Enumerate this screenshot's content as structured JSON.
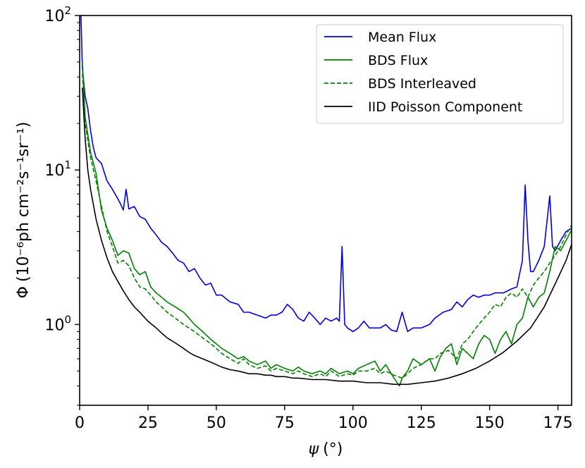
{
  "chart_data": {
    "type": "line",
    "xlabel_symbol": "ψ",
    "xlabel_unit": "(°)",
    "ylabel_symbol": "Φ",
    "ylabel_unit": "(10⁻⁶ph cm⁻²s⁻¹sr⁻¹)",
    "xlim": [
      0,
      180
    ],
    "ylim": [
      0.3,
      100
    ],
    "yscale": "log",
    "grid": false,
    "legend_position": "top-right",
    "x_ticks": [
      0,
      25,
      50,
      75,
      100,
      125,
      150,
      175
    ],
    "x_tick_labels": [
      "0",
      "25",
      "50",
      "75",
      "100",
      "125",
      "150",
      "175"
    ],
    "y_ticks": [
      1,
      10,
      100
    ],
    "y_tick_labels": [
      {
        "base": "10",
        "exp": "0"
      },
      {
        "base": "10",
        "exp": "1"
      },
      {
        "base": "10",
        "exp": "2"
      }
    ],
    "series": [
      {
        "name": "Mean Flux",
        "color": "#0000dd",
        "dash": "solid",
        "x": [
          0.5,
          1,
          2,
          3,
          4,
          5,
          6,
          8,
          10,
          12,
          14,
          15,
          16,
          17,
          18,
          20,
          22,
          24,
          26,
          28,
          30,
          32,
          34,
          36,
          38,
          40,
          42,
          44,
          46,
          48,
          50,
          52,
          55,
          58,
          60,
          62,
          65,
          68,
          70,
          72,
          74,
          76,
          78,
          80,
          82,
          84,
          86,
          88,
          90,
          92,
          94,
          95,
          96,
          97,
          98,
          100,
          102,
          104,
          106,
          108,
          110,
          112,
          114,
          116,
          118,
          120,
          122,
          125,
          128,
          130,
          133,
          136,
          138,
          140,
          142,
          144,
          146,
          148,
          150,
          152,
          155,
          158,
          160,
          162,
          163,
          164,
          165,
          166,
          168,
          170,
          172,
          173,
          174,
          176,
          178,
          180
        ],
        "y": [
          100,
          45,
          30,
          25,
          18,
          14,
          12,
          11,
          8.5,
          7.5,
          6.5,
          6.0,
          5.5,
          7.5,
          5.6,
          5.8,
          5.0,
          4.8,
          4.2,
          3.8,
          3.4,
          3.2,
          2.9,
          2.6,
          2.5,
          2.2,
          2.3,
          2.0,
          1.8,
          1.85,
          1.55,
          1.55,
          1.4,
          1.35,
          1.2,
          1.2,
          1.15,
          1.1,
          1.15,
          1.15,
          1.2,
          1.35,
          1.25,
          1.1,
          1.05,
          1.2,
          1.1,
          1.0,
          1.1,
          1.05,
          1.1,
          1.05,
          3.2,
          1.0,
          0.95,
          0.9,
          0.95,
          1.05,
          0.95,
          0.95,
          0.95,
          1.0,
          0.92,
          0.9,
          1.2,
          0.9,
          0.95,
          0.95,
          1.0,
          1.1,
          1.2,
          1.25,
          1.4,
          1.3,
          1.45,
          1.55,
          1.5,
          1.55,
          1.55,
          1.6,
          1.6,
          1.7,
          1.75,
          2.6,
          8.0,
          3.5,
          2.2,
          2.2,
          2.6,
          3.2,
          6.8,
          3.2,
          3.0,
          3.5,
          4.0,
          4.2
        ]
      },
      {
        "name": "BDS Flux",
        "color": "#008000",
        "dash": "solid",
        "x": [
          1,
          2,
          4,
          6,
          8,
          10,
          12,
          14,
          16,
          18,
          20,
          22,
          24,
          26,
          28,
          30,
          32,
          35,
          38,
          40,
          42,
          45,
          48,
          50,
          52,
          55,
          58,
          60,
          62,
          65,
          68,
          70,
          72,
          75,
          78,
          80,
          82,
          85,
          88,
          90,
          92,
          95,
          98,
          100,
          102,
          105,
          108,
          110,
          112,
          115,
          117,
          118,
          120,
          122,
          125,
          128,
          130,
          132,
          134,
          136,
          138,
          140,
          142,
          144,
          146,
          148,
          150,
          152,
          154,
          156,
          158,
          160,
          162,
          164,
          166,
          168,
          170,
          172,
          174,
          176,
          178,
          180
        ],
        "y": [
          50,
          22,
          13,
          9.5,
          5.5,
          4.2,
          3.5,
          2.8,
          3.0,
          2.9,
          2.3,
          2.1,
          2.2,
          1.75,
          1.6,
          1.5,
          1.4,
          1.3,
          1.2,
          1.1,
          1.0,
          0.9,
          0.8,
          0.75,
          0.7,
          0.65,
          0.6,
          0.62,
          0.58,
          0.55,
          0.58,
          0.52,
          0.55,
          0.52,
          0.5,
          0.53,
          0.5,
          0.48,
          0.5,
          0.48,
          0.52,
          0.48,
          0.5,
          0.48,
          0.52,
          0.55,
          0.58,
          0.5,
          0.55,
          0.45,
          0.4,
          0.45,
          0.5,
          0.6,
          0.55,
          0.6,
          0.5,
          0.62,
          0.7,
          0.75,
          0.55,
          0.7,
          0.65,
          0.6,
          0.75,
          0.85,
          0.8,
          0.65,
          0.8,
          0.9,
          0.75,
          1.0,
          1.1,
          1.5,
          1.3,
          1.5,
          1.6,
          2.2,
          3.2,
          3.0,
          3.5,
          4.1
        ]
      },
      {
        "name": "BDS Interleaved",
        "color": "#008000",
        "dash": "dashed",
        "x": [
          1,
          2,
          4,
          6,
          8,
          10,
          12,
          14,
          16,
          18,
          20,
          22,
          24,
          26,
          28,
          30,
          32,
          35,
          38,
          40,
          42,
          45,
          48,
          50,
          52,
          55,
          58,
          60,
          62,
          65,
          68,
          70,
          72,
          75,
          78,
          80,
          82,
          85,
          88,
          90,
          92,
          95,
          98,
          100,
          102,
          105,
          108,
          110,
          112,
          115,
          118,
          120,
          122,
          125,
          128,
          130,
          132,
          135,
          138,
          140,
          142,
          144,
          146,
          148,
          150,
          152,
          154,
          156,
          158,
          160,
          162,
          164,
          166,
          168,
          170,
          172,
          174,
          176,
          178,
          180
        ],
        "y": [
          42,
          20,
          12,
          8.5,
          5.8,
          4.0,
          3.2,
          2.5,
          2.6,
          2.4,
          2.0,
          1.75,
          1.7,
          1.55,
          1.4,
          1.3,
          1.2,
          1.1,
          1.0,
          0.95,
          0.9,
          0.82,
          0.75,
          0.7,
          0.65,
          0.6,
          0.56,
          0.6,
          0.55,
          0.52,
          0.54,
          0.5,
          0.52,
          0.5,
          0.48,
          0.5,
          0.48,
          0.46,
          0.48,
          0.46,
          0.5,
          0.46,
          0.48,
          0.47,
          0.5,
          0.5,
          0.52,
          0.48,
          0.5,
          0.47,
          0.45,
          0.48,
          0.52,
          0.55,
          0.6,
          0.6,
          0.65,
          0.68,
          0.6,
          0.75,
          0.8,
          0.9,
          1.0,
          1.1,
          1.2,
          1.35,
          1.3,
          1.5,
          1.6,
          1.5,
          1.7,
          1.5,
          1.8,
          2.0,
          2.2,
          2.5,
          2.8,
          3.2,
          3.8,
          4.4
        ]
      },
      {
        "name": "IID Poisson Component",
        "color": "#000000",
        "dash": "solid",
        "x": [
          1,
          2,
          3,
          4,
          5,
          6,
          8,
          10,
          12,
          14,
          16,
          18,
          20,
          22,
          25,
          28,
          30,
          32,
          35,
          38,
          40,
          42,
          45,
          48,
          50,
          52,
          55,
          58,
          60,
          62,
          65,
          68,
          70,
          72,
          75,
          78,
          80,
          85,
          90,
          95,
          100,
          105,
          110,
          115,
          120,
          125,
          130,
          135,
          140,
          145,
          150,
          155,
          160,
          165,
          170,
          175,
          178,
          180
        ],
        "y": [
          34,
          16,
          10,
          7.5,
          6.0,
          4.8,
          3.5,
          2.7,
          2.2,
          1.9,
          1.65,
          1.45,
          1.3,
          1.2,
          1.05,
          0.95,
          0.88,
          0.82,
          0.76,
          0.7,
          0.66,
          0.63,
          0.6,
          0.57,
          0.55,
          0.53,
          0.51,
          0.5,
          0.49,
          0.48,
          0.48,
          0.47,
          0.47,
          0.46,
          0.46,
          0.45,
          0.45,
          0.44,
          0.44,
          0.43,
          0.43,
          0.42,
          0.42,
          0.41,
          0.41,
          0.42,
          0.43,
          0.45,
          0.48,
          0.52,
          0.58,
          0.66,
          0.78,
          0.95,
          1.3,
          2.0,
          2.6,
          3.3
        ]
      }
    ]
  }
}
